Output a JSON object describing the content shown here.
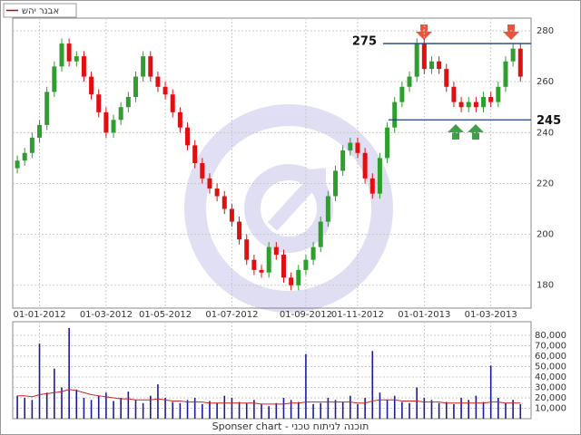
{
  "chart_data": [
    {
      "type": "candlestick",
      "legend": "אבנר יהש",
      "categories": [
        null,
        null,
        null,
        "01-01-2012",
        null,
        null,
        null,
        null,
        null,
        null,
        null,
        null,
        "01-03-2012",
        null,
        null,
        null,
        null,
        null,
        null,
        null,
        "01-05-2012",
        null,
        null,
        null,
        null,
        null,
        null,
        null,
        null,
        "01-07-2012",
        null,
        null,
        null,
        null,
        null,
        null,
        null,
        null,
        null,
        "01-09-2012",
        null,
        null,
        null,
        null,
        null,
        null,
        "01-11-2012",
        null,
        null,
        null,
        null,
        null,
        null,
        null,
        null,
        "01-01-2013",
        null,
        null,
        null,
        null,
        null,
        null,
        null,
        null,
        "01-03-2013",
        null,
        null,
        null,
        null
      ],
      "open": [
        226,
        229,
        232,
        238,
        243,
        256,
        266,
        275,
        268,
        270,
        262,
        255,
        248,
        240,
        245,
        250,
        254,
        262,
        270,
        262,
        258,
        255,
        248,
        242,
        235,
        228,
        222,
        218,
        215,
        210,
        205,
        198,
        190,
        186,
        185,
        195,
        192,
        183,
        180,
        186,
        190,
        195,
        205,
        215,
        225,
        233,
        236,
        232,
        222,
        216,
        230,
        242,
        252,
        258,
        262,
        275,
        265,
        268,
        265,
        258,
        252,
        250,
        252,
        250,
        254,
        252,
        258,
        268,
        273
      ],
      "high": [
        231,
        234,
        240,
        245,
        258,
        268,
        277,
        277,
        272,
        272,
        264,
        257,
        250,
        247,
        252,
        256,
        264,
        272,
        272,
        264,
        260,
        257,
        250,
        244,
        237,
        230,
        224,
        220,
        217,
        212,
        207,
        200,
        192,
        188,
        197,
        197,
        194,
        185,
        188,
        192,
        197,
        207,
        217,
        227,
        235,
        238,
        238,
        234,
        224,
        232,
        244,
        254,
        260,
        264,
        277,
        277,
        270,
        270,
        267,
        260,
        254,
        254,
        254,
        256,
        256,
        260,
        270,
        275,
        275
      ],
      "low": [
        224,
        227,
        230,
        236,
        241,
        254,
        264,
        266,
        266,
        260,
        253,
        246,
        238,
        238,
        243,
        248,
        252,
        260,
        260,
        256,
        253,
        246,
        240,
        233,
        226,
        220,
        216,
        213,
        208,
        203,
        196,
        188,
        184,
        183,
        183,
        190,
        181,
        178,
        178,
        184,
        188,
        193,
        203,
        213,
        223,
        231,
        230,
        220,
        214,
        214,
        228,
        240,
        250,
        256,
        260,
        263,
        263,
        263,
        256,
        250,
        248,
        248,
        248,
        248,
        250,
        250,
        256,
        266,
        260
      ],
      "close": [
        229,
        232,
        238,
        243,
        256,
        266,
        275,
        268,
        270,
        262,
        255,
        248,
        240,
        245,
        250,
        254,
        262,
        270,
        262,
        258,
        255,
        248,
        242,
        235,
        228,
        222,
        218,
        215,
        210,
        205,
        198,
        190,
        186,
        185,
        195,
        192,
        183,
        180,
        186,
        190,
        195,
        205,
        215,
        225,
        233,
        236,
        232,
        222,
        216,
        230,
        242,
        252,
        258,
        262,
        275,
        265,
        268,
        265,
        258,
        252,
        250,
        252,
        250,
        254,
        252,
        258,
        268,
        273,
        262
      ],
      "up_color": "#2e9e2e",
      "down_color": "#e01010",
      "legend_color": "#c00000",
      "ylim": [
        171,
        285
      ],
      "yticks": [
        180,
        200,
        220,
        240,
        260,
        280
      ],
      "grid": true,
      "levels": [
        275,
        245
      ],
      "level_color": "#1f3f7f"
    },
    {
      "type": "bar",
      "values": [
        22000,
        20000,
        18000,
        72000,
        25000,
        48000,
        30000,
        87000,
        28000,
        20000,
        18000,
        22000,
        25000,
        17000,
        20000,
        26000,
        18000,
        15000,
        22000,
        33000,
        20000,
        16000,
        15000,
        18000,
        20000,
        14000,
        17000,
        15000,
        22000,
        20000,
        16000,
        15000,
        18000,
        14000,
        12000,
        15000,
        20000,
        18000,
        16000,
        62000,
        14000,
        15000,
        20000,
        18000,
        16000,
        22000,
        14000,
        20000,
        65000,
        25000,
        18000,
        22000,
        16000,
        15000,
        30000,
        20000,
        18000,
        15000,
        16000,
        14000,
        20000,
        18000,
        22000,
        16000,
        51000,
        20000,
        15000,
        18000,
        14000
      ],
      "average": [
        22000,
        22000,
        21000,
        23000,
        24000,
        25000,
        26000,
        28000,
        27000,
        25000,
        23000,
        22000,
        21000,
        20000,
        19000,
        19000,
        18000,
        18000,
        18000,
        19000,
        18000,
        17000,
        17000,
        16000,
        16000,
        16000,
        15000,
        15000,
        15000,
        15000,
        15000,
        15000,
        15000,
        14000,
        14000,
        14000,
        14000,
        15000,
        15000,
        16000,
        16000,
        16000,
        16000,
        16000,
        16000,
        16000,
        15000,
        15000,
        17000,
        18000,
        18000,
        18000,
        17000,
        17000,
        17000,
        16000,
        16000,
        16000,
        15000,
        15000,
        15000,
        15000,
        15000,
        15000,
        16000,
        16000,
        15000,
        15000,
        15000
      ],
      "color": "#1a1aa0",
      "average_color": "#d02020",
      "ylim": [
        0,
        93000
      ],
      "yticks": [
        {
          "value": 10000,
          "label": "10,000"
        },
        {
          "value": 20000,
          "label": "20,000"
        },
        {
          "value": 30000,
          "label": "30,000"
        },
        {
          "value": 40000,
          "label": "40,000"
        },
        {
          "value": 50000,
          "label": "50,000"
        },
        {
          "value": 60000,
          "label": "60,000"
        },
        {
          "value": 70000,
          "label": "70,000"
        },
        {
          "value": 80000,
          "label": "80,000"
        }
      ],
      "grid": true
    }
  ],
  "footer": "Sponser chart - תוכנה לניתוח טכני"
}
